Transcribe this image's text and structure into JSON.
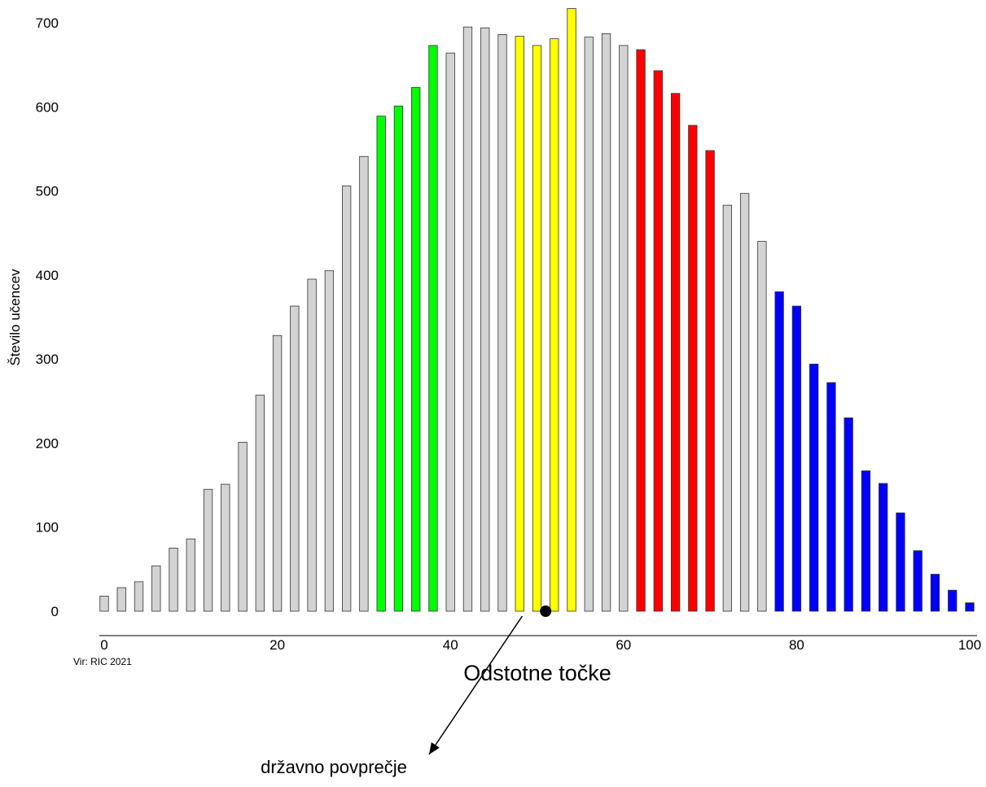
{
  "chart_data": {
    "type": "bar",
    "title": "",
    "xlabel": "Odstotne točke",
    "ylabel": "Število učencev",
    "xlim": [
      0,
      100
    ],
    "ylim": [
      0,
      700
    ],
    "xticks": [
      0,
      20,
      40,
      60,
      80,
      100
    ],
    "yticks": [
      0,
      100,
      200,
      300,
      400,
      500,
      600,
      700
    ],
    "grid": false,
    "source": "Vir: RIC 2021",
    "x": [
      0,
      2,
      4,
      6,
      8,
      10,
      12,
      14,
      16,
      18,
      20,
      22,
      24,
      26,
      28,
      30,
      32,
      34,
      36,
      38,
      40,
      42,
      44,
      46,
      48,
      50,
      52,
      54,
      56,
      58,
      60,
      62,
      64,
      66,
      68,
      70,
      72,
      74,
      76,
      78,
      80,
      82,
      84,
      86,
      88,
      90,
      92,
      94,
      96,
      98,
      100
    ],
    "values": [
      18,
      28,
      35,
      54,
      75,
      86,
      145,
      151,
      201,
      257,
      328,
      363,
      395,
      405,
      506,
      541,
      589,
      601,
      623,
      673,
      664,
      695,
      694,
      686,
      684,
      673,
      681,
      717,
      683,
      687,
      673,
      668,
      643,
      616,
      578,
      548,
      483,
      497,
      440,
      380,
      363,
      294,
      272,
      230,
      167,
      152,
      117,
      72,
      44,
      25,
      10
    ],
    "colors": [
      "#d3d3d3",
      "#d3d3d3",
      "#d3d3d3",
      "#d3d3d3",
      "#d3d3d3",
      "#d3d3d3",
      "#d3d3d3",
      "#d3d3d3",
      "#d3d3d3",
      "#d3d3d3",
      "#d3d3d3",
      "#d3d3d3",
      "#d3d3d3",
      "#d3d3d3",
      "#d3d3d3",
      "#d3d3d3",
      "#00ff00",
      "#00ff00",
      "#00ff00",
      "#00ff00",
      "#d3d3d3",
      "#d3d3d3",
      "#d3d3d3",
      "#d3d3d3",
      "#ffff00",
      "#ffff00",
      "#ffff00",
      "#ffff00",
      "#d3d3d3",
      "#d3d3d3",
      "#d3d3d3",
      "#ff0000",
      "#ff0000",
      "#ff0000",
      "#ff0000",
      "#ff0000",
      "#d3d3d3",
      "#d3d3d3",
      "#d3d3d3",
      "#0000ff",
      "#0000ff",
      "#0000ff",
      "#0000ff",
      "#0000ff",
      "#0000ff",
      "#0000ff",
      "#0000ff",
      "#0000ff",
      "#0000ff",
      "#0000ff",
      "#0000ff"
    ],
    "national_average": {
      "label": "državno povprečje",
      "x": 51
    }
  }
}
